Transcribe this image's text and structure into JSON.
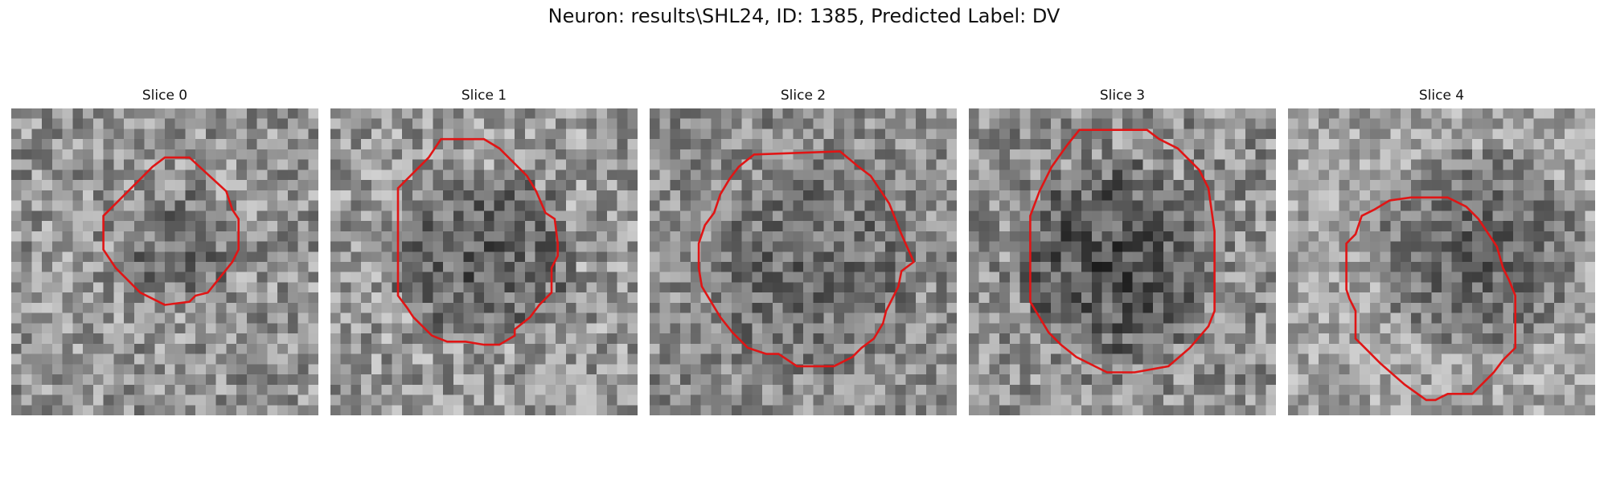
{
  "figure": {
    "title": "Neuron: results\\SHL24, ID: 1385, Predicted Label: DV"
  },
  "outline_color": "#e01515",
  "slices": [
    {
      "label": "Slice 0",
      "seed": 11,
      "brightness": 0.58,
      "contrast": 0.22,
      "dark_center": [
        0.56,
        0.46
      ],
      "dark_radius": 0.2,
      "dark_strength": 0.18,
      "outline": [
        [
          0.5,
          0.16
        ],
        [
          0.58,
          0.16
        ],
        [
          0.7,
          0.27
        ],
        [
          0.72,
          0.33
        ],
        [
          0.74,
          0.36
        ],
        [
          0.74,
          0.46
        ],
        [
          0.72,
          0.5
        ],
        [
          0.64,
          0.6
        ],
        [
          0.6,
          0.61
        ],
        [
          0.58,
          0.63
        ],
        [
          0.5,
          0.64
        ],
        [
          0.46,
          0.62
        ],
        [
          0.42,
          0.6
        ],
        [
          0.38,
          0.56
        ],
        [
          0.34,
          0.52
        ],
        [
          0.3,
          0.46
        ],
        [
          0.3,
          0.35
        ],
        [
          0.34,
          0.31
        ],
        [
          0.42,
          0.23
        ],
        [
          0.46,
          0.19
        ]
      ]
    },
    {
      "label": "Slice 1",
      "seed": 23,
      "brightness": 0.6,
      "contrast": 0.22,
      "dark_center": [
        0.5,
        0.49
      ],
      "dark_radius": 0.3,
      "dark_strength": 0.25,
      "outline": [
        [
          0.36,
          0.1
        ],
        [
          0.5,
          0.1
        ],
        [
          0.55,
          0.13
        ],
        [
          0.64,
          0.22
        ],
        [
          0.67,
          0.27
        ],
        [
          0.7,
          0.34
        ],
        [
          0.73,
          0.36
        ],
        [
          0.74,
          0.44
        ],
        [
          0.74,
          0.48
        ],
        [
          0.72,
          0.52
        ],
        [
          0.72,
          0.6
        ],
        [
          0.68,
          0.64
        ],
        [
          0.65,
          0.68
        ],
        [
          0.6,
          0.72
        ],
        [
          0.6,
          0.74
        ],
        [
          0.55,
          0.77
        ],
        [
          0.5,
          0.77
        ],
        [
          0.44,
          0.76
        ],
        [
          0.38,
          0.76
        ],
        [
          0.33,
          0.74
        ],
        [
          0.27,
          0.68
        ],
        [
          0.25,
          0.65
        ],
        [
          0.22,
          0.61
        ],
        [
          0.22,
          0.58
        ],
        [
          0.22,
          0.26
        ],
        [
          0.26,
          0.22
        ],
        [
          0.32,
          0.16
        ]
      ]
    },
    {
      "label": "Slice 2",
      "seed": 37,
      "brightness": 0.55,
      "contrast": 0.2,
      "dark_center": [
        0.52,
        0.52
      ],
      "dark_radius": 0.34,
      "dark_strength": 0.15,
      "outline": [
        [
          0.34,
          0.15
        ],
        [
          0.62,
          0.14
        ],
        [
          0.68,
          0.19
        ],
        [
          0.72,
          0.22
        ],
        [
          0.78,
          0.31
        ],
        [
          0.8,
          0.36
        ],
        [
          0.82,
          0.41
        ],
        [
          0.86,
          0.5
        ],
        [
          0.82,
          0.53
        ],
        [
          0.81,
          0.58
        ],
        [
          0.79,
          0.62
        ],
        [
          0.77,
          0.66
        ],
        [
          0.76,
          0.7
        ],
        [
          0.73,
          0.75
        ],
        [
          0.69,
          0.78
        ],
        [
          0.66,
          0.81
        ],
        [
          0.6,
          0.84
        ],
        [
          0.48,
          0.84
        ],
        [
          0.42,
          0.8
        ],
        [
          0.38,
          0.8
        ],
        [
          0.32,
          0.78
        ],
        [
          0.27,
          0.73
        ],
        [
          0.23,
          0.68
        ],
        [
          0.2,
          0.63
        ],
        [
          0.17,
          0.58
        ],
        [
          0.16,
          0.52
        ],
        [
          0.16,
          0.44
        ],
        [
          0.18,
          0.38
        ],
        [
          0.21,
          0.34
        ],
        [
          0.23,
          0.28
        ],
        [
          0.26,
          0.23
        ],
        [
          0.29,
          0.19
        ]
      ]
    },
    {
      "label": "Slice 3",
      "seed": 51,
      "brightness": 0.56,
      "contrast": 0.22,
      "dark_center": [
        0.48,
        0.5
      ],
      "dark_radius": 0.33,
      "dark_strength": 0.28,
      "outline": [
        [
          0.36,
          0.07
        ],
        [
          0.58,
          0.07
        ],
        [
          0.62,
          0.1
        ],
        [
          0.68,
          0.13
        ],
        [
          0.75,
          0.2
        ],
        [
          0.78,
          0.26
        ],
        [
          0.79,
          0.33
        ],
        [
          0.8,
          0.4
        ],
        [
          0.8,
          0.6
        ],
        [
          0.8,
          0.66
        ],
        [
          0.78,
          0.71
        ],
        [
          0.72,
          0.78
        ],
        [
          0.65,
          0.84
        ],
        [
          0.54,
          0.86
        ],
        [
          0.45,
          0.86
        ],
        [
          0.35,
          0.81
        ],
        [
          0.3,
          0.77
        ],
        [
          0.26,
          0.73
        ],
        [
          0.2,
          0.63
        ],
        [
          0.2,
          0.46
        ],
        [
          0.2,
          0.35
        ],
        [
          0.23,
          0.27
        ],
        [
          0.27,
          0.19
        ],
        [
          0.32,
          0.12
        ]
      ]
    },
    {
      "label": "Slice 4",
      "seed": 67,
      "brightness": 0.64,
      "contrast": 0.18,
      "dark_center": [
        0.62,
        0.47
      ],
      "dark_radius": 0.34,
      "dark_strength": 0.28,
      "outline": [
        [
          0.4,
          0.29
        ],
        [
          0.52,
          0.29
        ],
        [
          0.58,
          0.32
        ],
        [
          0.62,
          0.36
        ],
        [
          0.66,
          0.42
        ],
        [
          0.68,
          0.45
        ],
        [
          0.7,
          0.52
        ],
        [
          0.72,
          0.56
        ],
        [
          0.74,
          0.61
        ],
        [
          0.74,
          0.78
        ],
        [
          0.7,
          0.82
        ],
        [
          0.67,
          0.86
        ],
        [
          0.6,
          0.93
        ],
        [
          0.52,
          0.93
        ],
        [
          0.48,
          0.95
        ],
        [
          0.45,
          0.95
        ],
        [
          0.38,
          0.9
        ],
        [
          0.3,
          0.83
        ],
        [
          0.24,
          0.77
        ],
        [
          0.22,
          0.75
        ],
        [
          0.22,
          0.66
        ],
        [
          0.2,
          0.62
        ],
        [
          0.19,
          0.59
        ],
        [
          0.19,
          0.44
        ],
        [
          0.22,
          0.41
        ],
        [
          0.24,
          0.35
        ],
        [
          0.28,
          0.33
        ],
        [
          0.33,
          0.3
        ]
      ]
    }
  ]
}
